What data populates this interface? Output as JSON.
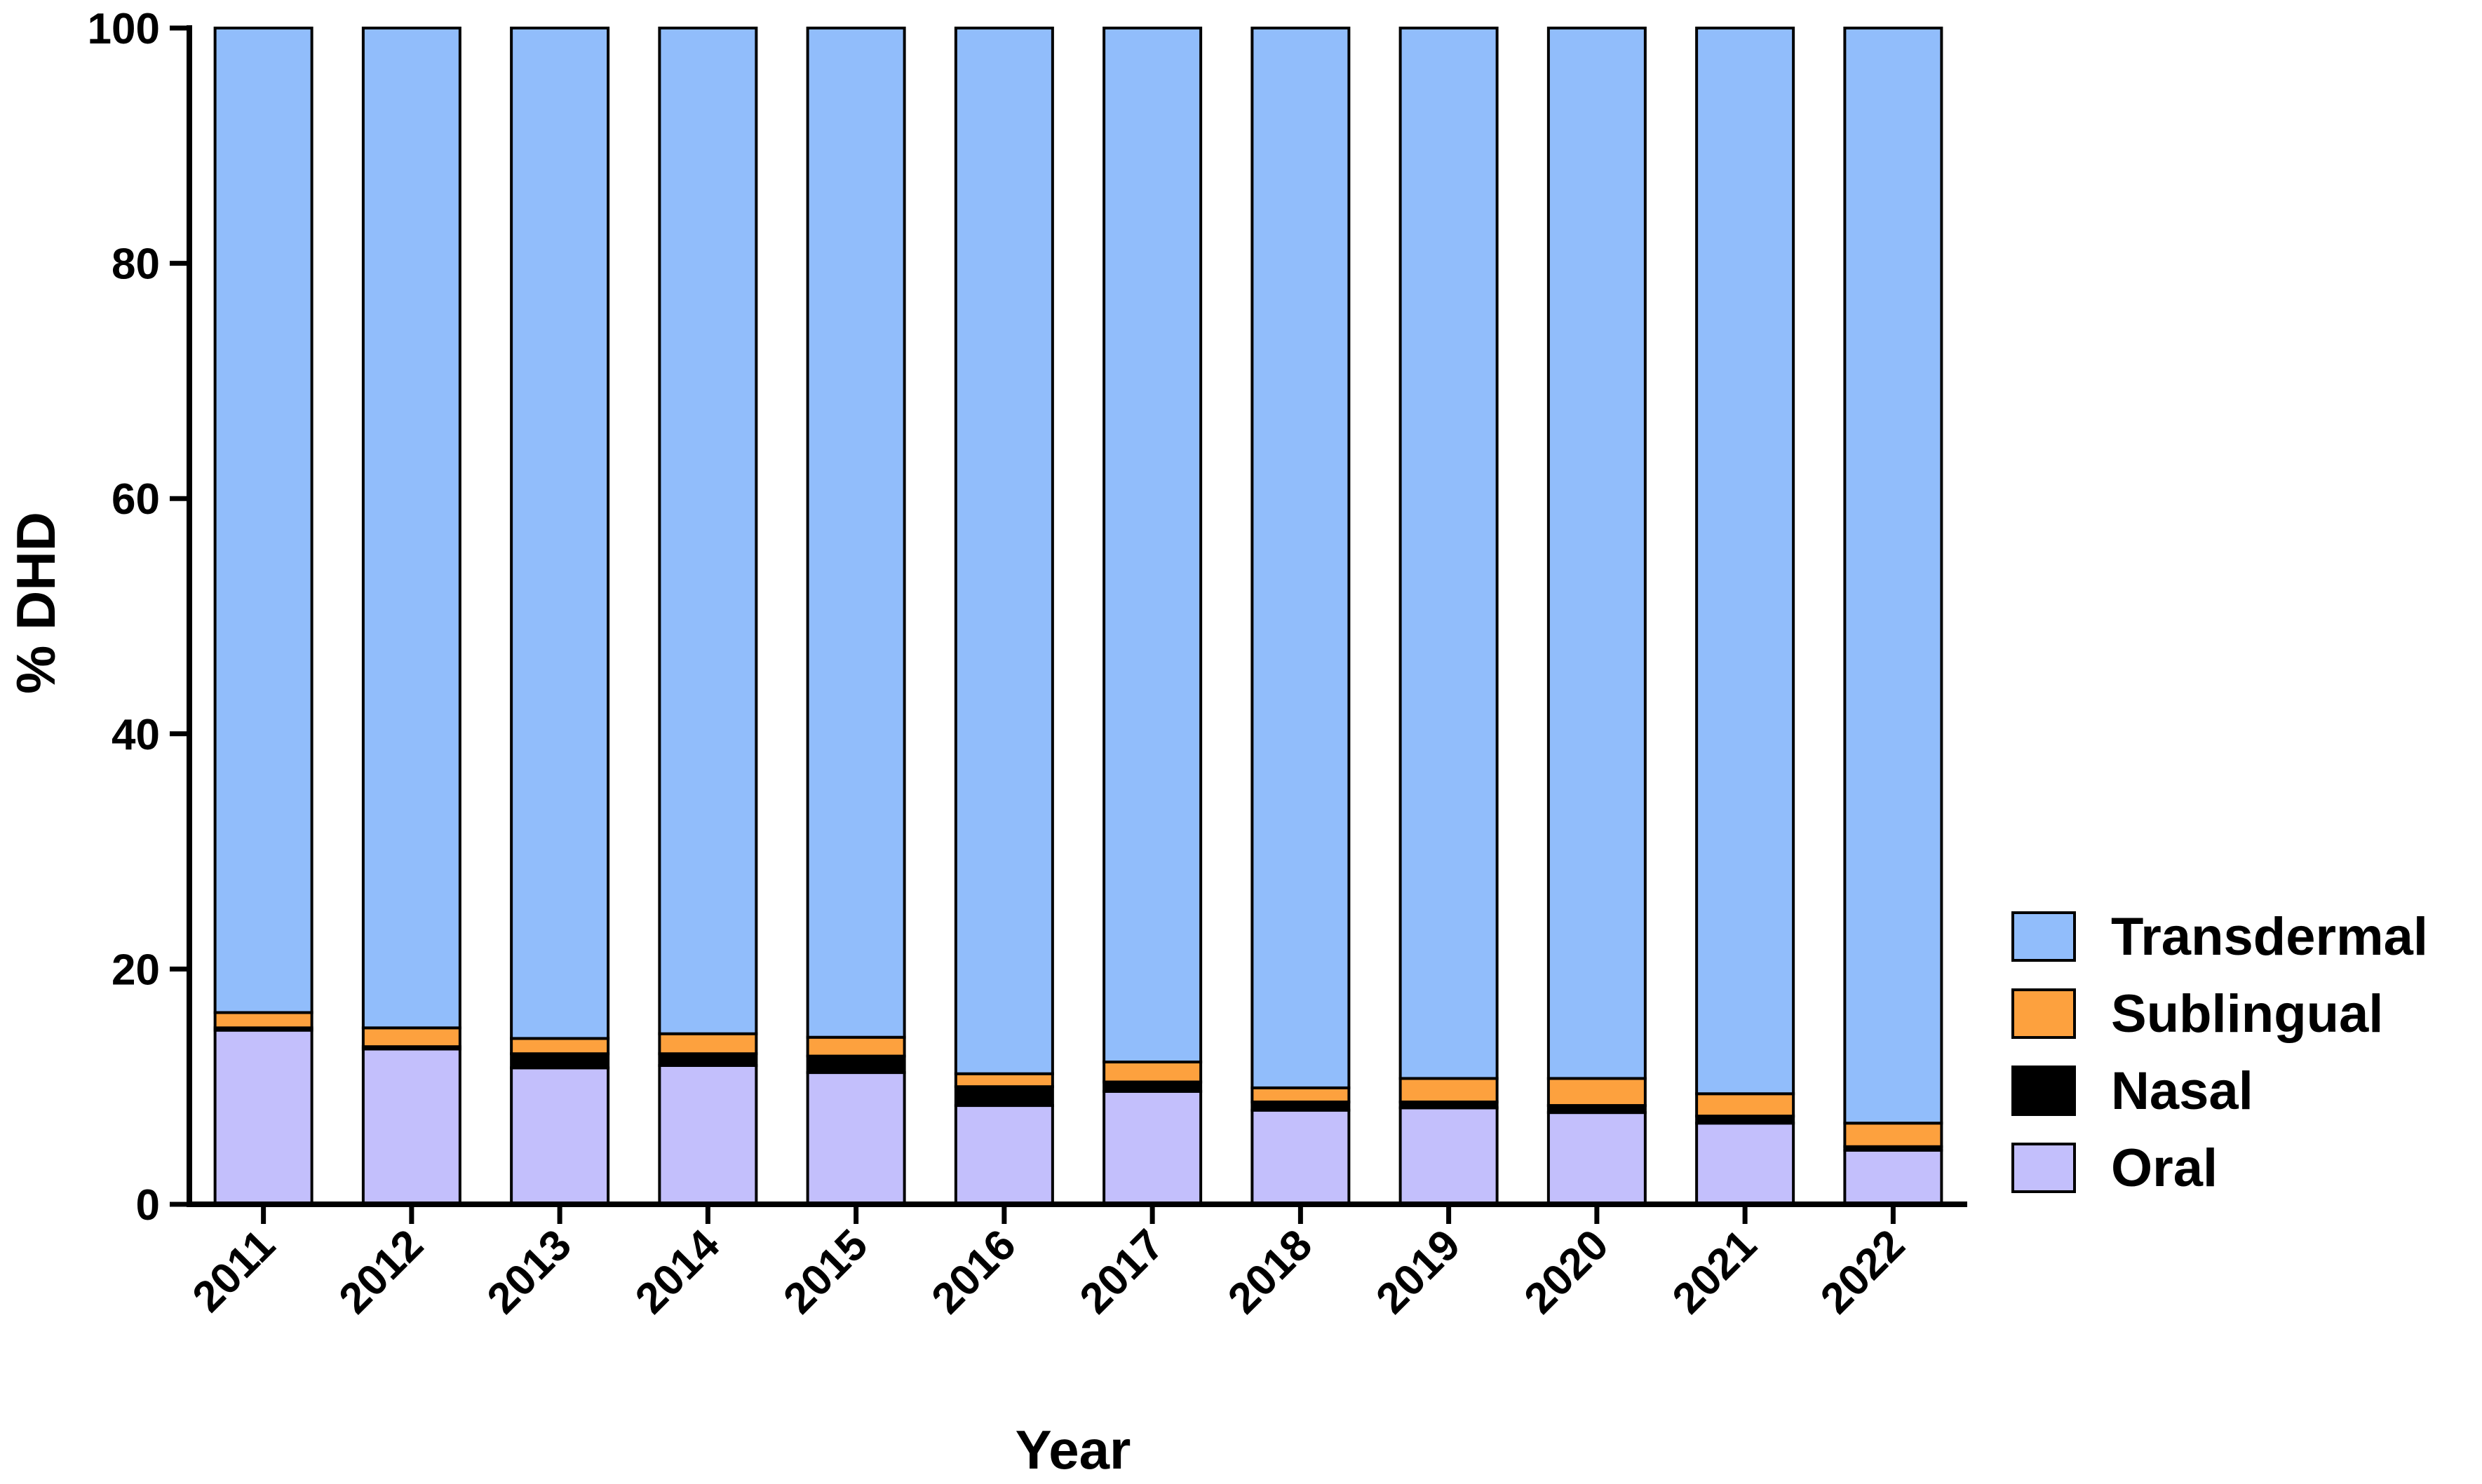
{
  "chart_data": {
    "type": "bar",
    "stacked": true,
    "ylabel": "% DHD",
    "xlabel": "Year",
    "ylim": [
      0,
      100
    ],
    "yticks": [
      0,
      20,
      40,
      60,
      80,
      100
    ],
    "grid": false,
    "legend_position": "right",
    "categories": [
      "2011",
      "2012",
      "2013",
      "2014",
      "2015",
      "2016",
      "2017",
      "2018",
      "2019",
      "2020",
      "2021",
      "2022"
    ],
    "series": [
      {
        "name": "Oral",
        "color": "#c3bffc",
        "values": [
          14.8,
          13.2,
          11.6,
          11.8,
          11.2,
          8.4,
          9.6,
          8.0,
          8.2,
          7.8,
          6.9,
          4.6
        ]
      },
      {
        "name": "Nasal",
        "color": "#000000",
        "values": [
          0.2,
          0.2,
          1.2,
          1.0,
          1.4,
          1.6,
          0.8,
          0.7,
          0.5,
          0.6,
          0.6,
          0.3
        ]
      },
      {
        "name": "Sublingual",
        "color": "#fda13e",
        "values": [
          1.3,
          1.6,
          1.3,
          1.7,
          1.6,
          1.1,
          1.7,
          1.2,
          2.0,
          2.3,
          1.9,
          2.0
        ]
      },
      {
        "name": "Transdermal",
        "color": "#91bdfb",
        "values": [
          83.7,
          85.0,
          85.9,
          85.5,
          85.8,
          88.9,
          87.9,
          90.1,
          89.3,
          89.3,
          90.6,
          93.1
        ]
      }
    ]
  },
  "legend": {
    "items": [
      {
        "label": "Transdermal",
        "color": "#91bdfb"
      },
      {
        "label": "Sublingual",
        "color": "#fda13e"
      },
      {
        "label": "Nasal",
        "color": "#000000"
      },
      {
        "label": "Oral",
        "color": "#c3bffc"
      }
    ]
  }
}
